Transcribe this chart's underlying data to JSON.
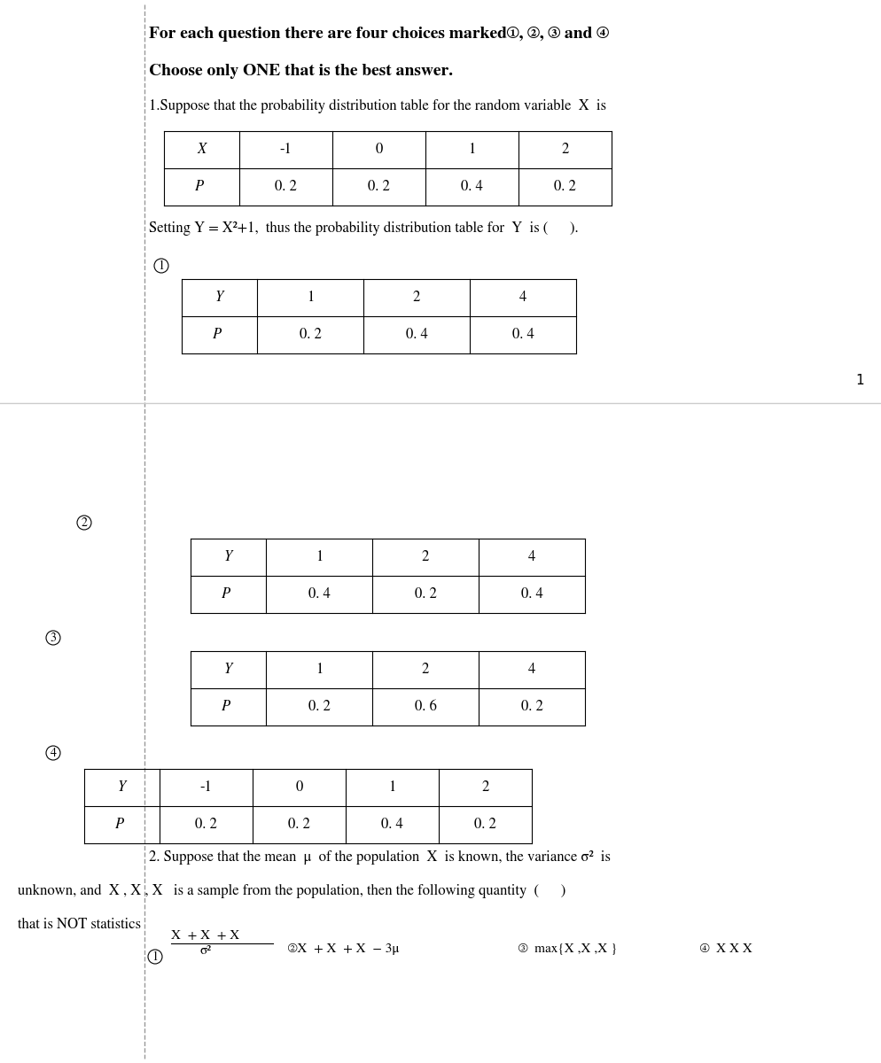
{
  "bg_color": "#ffffff",
  "header_line1": "For each question there are four choices marked①, ②, ③ and ④",
  "header_line2": "Choose only ONE that is the best answer.",
  "q1_intro": "1.Suppose that the probability distribution table for the random variable  X  is",
  "q1_setting": "Setting Y = X²+1,  thus the probability distribution table for  Y  is (      ).",
  "q1_table_headers": [
    "X",
    "-1",
    "0",
    "1",
    "2"
  ],
  "q1_table_prob": [
    "Pᵢ",
    "0. 2",
    "0. 2",
    "0. 4",
    "0. 2"
  ],
  "opt1_headers": [
    "Y",
    "1",
    "2",
    "4"
  ],
  "opt1_prob": [
    "Pᵢ",
    "0. 2",
    "0. 4",
    "0. 4"
  ],
  "opt2_headers": [
    "Y",
    "1",
    "2",
    "4"
  ],
  "opt2_prob": [
    "Pᵢ",
    "0. 4",
    "0. 2",
    "0. 4"
  ],
  "opt3_headers": [
    "Y",
    "1",
    "2",
    "4"
  ],
  "opt3_prob": [
    "Pᵢ",
    "0. 2",
    "0. 6",
    "0. 2"
  ],
  "opt4_headers": [
    "Y",
    "-1",
    "0",
    "1",
    "2"
  ],
  "opt4_prob": [
    "Pᵢ",
    "0. 2",
    "0. 2",
    "0. 4",
    "0. 2"
  ],
  "q2_line1": "2. Suppose that the mean  μ  of the population  X  is known, the variance σ²  is",
  "q2_line2": "unknown, and  X₁, X₂, X₃  is a sample from the population, then the following quantity  (      )",
  "q2_line3": "that is NOT statistics",
  "q2_frac_num": "X₁ + X₂ + X₃",
  "q2_frac_den": "σ²",
  "q2_opt2_text": "②X₁ + X₂ + X₃ − 3μ",
  "q2_opt3_text": "③  max{X₁,X₂,X₃}",
  "q2_opt4_text": "④  X₁X₂X₃",
  "page_num": "1"
}
